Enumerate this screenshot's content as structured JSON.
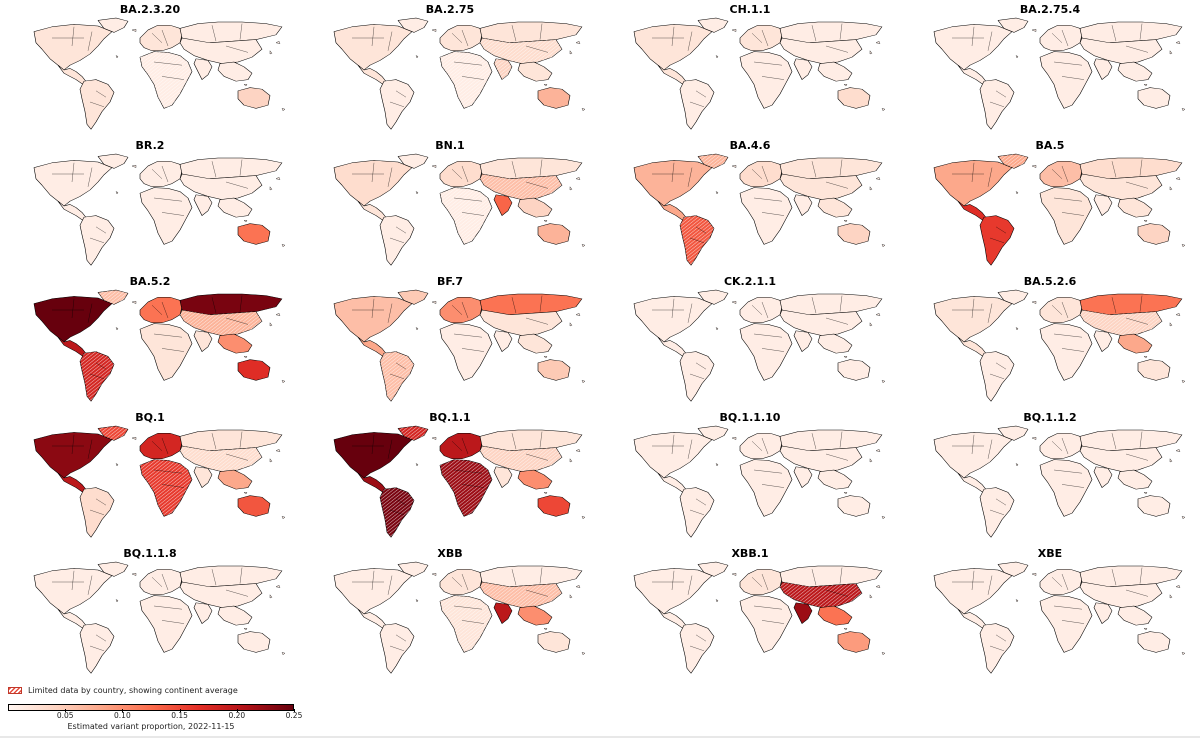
{
  "figure": {
    "panels": [
      {
        "title": "BA.2.3.20",
        "na": 0.02,
        "ca": 0.02,
        "sa": 0.02,
        "eu": 0.02,
        "af": 0.01,
        "ru": 0.01,
        "as": 0.01,
        "in": 0.01,
        "se": 0.01,
        "au": 0.04,
        "gl": 0.01,
        "hatch": [
          "af"
        ]
      },
      {
        "title": "BA.2.75",
        "na": 0.02,
        "ca": 0.02,
        "sa": 0.01,
        "eu": 0.02,
        "af": 0.01,
        "ru": 0.02,
        "as": 0.03,
        "in": 0.04,
        "se": 0.02,
        "au": 0.07,
        "gl": 0.01,
        "hatch": [
          "as",
          "in",
          "af"
        ]
      },
      {
        "title": "CH.1.1",
        "na": 0.02,
        "ca": 0.02,
        "sa": 0.01,
        "eu": 0.02,
        "af": 0.01,
        "ru": 0.01,
        "as": 0.01,
        "in": 0.01,
        "se": 0.01,
        "au": 0.03,
        "gl": 0.01,
        "hatch": []
      },
      {
        "title": "BA.2.75.4",
        "na": 0.01,
        "ca": 0.01,
        "sa": 0.01,
        "eu": 0.01,
        "af": 0.01,
        "ru": 0.01,
        "as": 0.01,
        "in": 0.01,
        "se": 0.01,
        "au": 0.01,
        "gl": 0.01,
        "hatch": []
      },
      {
        "title": "BR.2",
        "na": 0.01,
        "ca": 0.01,
        "sa": 0.01,
        "eu": 0.01,
        "af": 0.01,
        "ru": 0.01,
        "as": 0.01,
        "in": 0.01,
        "se": 0.01,
        "au": 0.12,
        "gl": 0.01,
        "hatch": []
      },
      {
        "title": "BN.1",
        "na": 0.03,
        "ca": 0.02,
        "sa": 0.01,
        "eu": 0.03,
        "af": 0.01,
        "ru": 0.02,
        "as": 0.06,
        "in": 0.13,
        "se": 0.04,
        "au": 0.07,
        "gl": 0.01,
        "hatch": [
          "as",
          "af"
        ]
      },
      {
        "title": "BA.4.6",
        "na": 0.07,
        "ca": 0.08,
        "sa": 0.14,
        "eu": 0.03,
        "af": 0.01,
        "ru": 0.02,
        "as": 0.02,
        "in": 0.01,
        "se": 0.02,
        "au": 0.04,
        "gl": 0.07,
        "hatch": [
          "sa",
          "gl"
        ]
      },
      {
        "title": "BA.5",
        "na": 0.08,
        "ca": 0.17,
        "sa": 0.16,
        "eu": 0.06,
        "af": 0.02,
        "ru": 0.03,
        "as": 0.02,
        "in": 0.01,
        "se": 0.02,
        "au": 0.04,
        "gl": 0.08,
        "hatch": [
          "gl"
        ]
      },
      {
        "title": "BA.5.2",
        "na": 0.25,
        "ca": 0.2,
        "sa": 0.18,
        "eu": 0.12,
        "af": 0.02,
        "ru": 0.24,
        "as": 0.07,
        "in": 0.02,
        "se": 0.1,
        "au": 0.17,
        "gl": 0.06,
        "hatch": [
          "gl",
          "sa",
          "as"
        ]
      },
      {
        "title": "BF.7",
        "na": 0.06,
        "ca": 0.08,
        "sa": 0.06,
        "eu": 0.1,
        "af": 0.01,
        "ru": 0.12,
        "as": 0.02,
        "in": 0.01,
        "se": 0.02,
        "au": 0.05,
        "gl": 0.05,
        "hatch": [
          "sa"
        ]
      },
      {
        "title": "CK.2.1.1",
        "na": 0.01,
        "ca": 0.01,
        "sa": 0.01,
        "eu": 0.01,
        "af": 0.01,
        "ru": 0.01,
        "as": 0.01,
        "in": 0.01,
        "se": 0.01,
        "au": 0.01,
        "gl": 0.01,
        "hatch": []
      },
      {
        "title": "BA.5.2.6",
        "na": 0.02,
        "ca": 0.02,
        "sa": 0.01,
        "eu": 0.02,
        "af": 0.01,
        "ru": 0.12,
        "as": 0.04,
        "in": 0.01,
        "se": 0.08,
        "au": 0.02,
        "gl": 0.01,
        "hatch": [
          "as"
        ]
      },
      {
        "title": "BQ.1",
        "na": 0.23,
        "ca": 0.2,
        "sa": 0.03,
        "eu": 0.18,
        "af": 0.16,
        "ru": 0.02,
        "as": 0.03,
        "in": 0.02,
        "se": 0.08,
        "au": 0.14,
        "gl": 0.15,
        "hatch": [
          "af",
          "gl",
          "as"
        ]
      },
      {
        "title": "BQ.1.1",
        "na": 0.25,
        "ca": 0.22,
        "sa": 0.24,
        "eu": 0.2,
        "af": 0.22,
        "ru": 0.02,
        "as": 0.04,
        "in": 0.02,
        "se": 0.1,
        "au": 0.15,
        "gl": 0.18,
        "hatch": [
          "af",
          "gl",
          "sa",
          "as"
        ]
      },
      {
        "title": "BQ.1.1.10",
        "na": 0.01,
        "ca": 0.01,
        "sa": 0.01,
        "eu": 0.01,
        "af": 0.01,
        "ru": 0.01,
        "as": 0.01,
        "in": 0.01,
        "se": 0.01,
        "au": 0.01,
        "gl": 0.01,
        "hatch": []
      },
      {
        "title": "BQ.1.1.2",
        "na": 0.01,
        "ca": 0.01,
        "sa": 0.01,
        "eu": 0.01,
        "af": 0.01,
        "ru": 0.01,
        "as": 0.01,
        "in": 0.01,
        "se": 0.01,
        "au": 0.01,
        "gl": 0.01,
        "hatch": []
      },
      {
        "title": "BQ.1.1.8",
        "na": 0.01,
        "ca": 0.01,
        "sa": 0.01,
        "eu": 0.01,
        "af": 0.01,
        "ru": 0.01,
        "as": 0.01,
        "in": 0.01,
        "se": 0.01,
        "au": 0.01,
        "gl": 0.01,
        "hatch": []
      },
      {
        "title": "XBB",
        "na": 0.01,
        "ca": 0.01,
        "sa": 0.01,
        "eu": 0.02,
        "af": 0.02,
        "ru": 0.01,
        "as": 0.06,
        "in": 0.2,
        "se": 0.1,
        "au": 0.02,
        "gl": 0.01,
        "hatch": [
          "as",
          "af"
        ]
      },
      {
        "title": "XBB.1",
        "na": 0.01,
        "ca": 0.01,
        "sa": 0.01,
        "eu": 0.02,
        "af": 0.01,
        "ru": 0.01,
        "as": 0.2,
        "in": 0.22,
        "se": 0.12,
        "au": 0.09,
        "gl": 0.01,
        "hatch": [
          "as"
        ]
      },
      {
        "title": "XBE",
        "na": 0.01,
        "ca": 0.01,
        "sa": 0.01,
        "eu": 0.01,
        "af": 0.01,
        "ru": 0.01,
        "as": 0.01,
        "in": 0.01,
        "se": 0.01,
        "au": 0.01,
        "gl": 0.01,
        "hatch": []
      }
    ]
  },
  "legend": {
    "hatch_note": "Limited data by country, showing continent average",
    "colorbar_min": 0.0,
    "colorbar_max": 0.25,
    "ticks": [
      "0.05",
      "0.10",
      "0.15",
      "0.20",
      "0.25"
    ],
    "colorbar_label": "Estimated variant proportion, 2022-11-15",
    "colors": [
      "#fff5f0",
      "#fdd3c1",
      "#fca486",
      "#fb6c4c",
      "#e32f27",
      "#b11218",
      "#67000d"
    ],
    "hatch_color": "#c0392b"
  }
}
